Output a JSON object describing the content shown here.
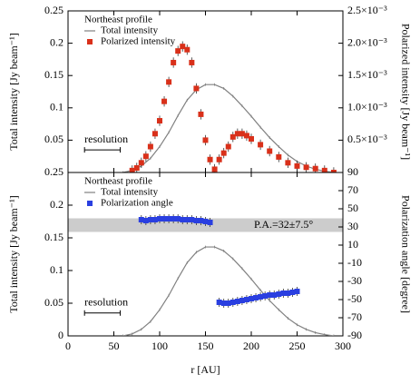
{
  "chart_data": [
    {
      "type": "line",
      "legend_title": "Northeast profile",
      "ylabel": "Total intensity [Jy beam⁻¹]",
      "y2label": "Polarized intensity [Jy beam⁻¹]",
      "xlim": [
        0,
        300
      ],
      "ylim": [
        0,
        0.25
      ],
      "y2lim": [
        0,
        0.0025
      ],
      "yticks": [
        0.05,
        0.1,
        0.15,
        0.2,
        0.25
      ],
      "y2ticks": [
        {
          "value": 0.0005,
          "label": "0.5×10⁻³"
        },
        {
          "value": 0.001,
          "label": "1.0×10⁻³"
        },
        {
          "value": 0.0015,
          "label": "1.5×10⁻³"
        },
        {
          "value": 0.002,
          "label": "2.0×10⁻³"
        },
        {
          "value": 0.0025,
          "label": "2.5×10⁻³"
        }
      ],
      "resolution": {
        "label": "resolution",
        "x": [
          18,
          57
        ],
        "y": 0.035
      },
      "series": [
        {
          "name": "Total intensity",
          "color": "#808080",
          "marker": "none",
          "yerr": 0.002,
          "x": [
            60,
            70,
            80,
            90,
            100,
            110,
            120,
            130,
            140,
            150,
            160,
            170,
            180,
            190,
            200,
            210,
            220,
            230,
            240,
            250,
            260,
            270,
            280,
            290
          ],
          "values": [
            0,
            0.003,
            0.01,
            0.022,
            0.04,
            0.062,
            0.088,
            0.112,
            0.128,
            0.136,
            0.136,
            0.13,
            0.118,
            0.103,
            0.087,
            0.07,
            0.054,
            0.04,
            0.027,
            0.017,
            0.01,
            0.005,
            0.002,
            0
          ]
        },
        {
          "name": "Polarized intensity",
          "color": "#d9301a",
          "marker": "square",
          "axis": "y2",
          "yerr": 8e-05,
          "x": [
            70,
            75,
            80,
            85,
            90,
            95,
            100,
            105,
            110,
            115,
            120,
            125,
            130,
            135,
            140,
            145,
            150,
            155,
            160,
            165,
            170,
            175,
            180,
            185,
            190,
            195,
            200,
            210,
            220,
            230,
            240,
            250,
            260,
            270,
            280,
            290
          ],
          "values": [
            3e-05,
            7e-05,
            0.00015,
            0.00025,
            0.0004,
            0.0006,
            0.0008,
            0.0011,
            0.0014,
            0.0017,
            0.00188,
            0.00195,
            0.0019,
            0.0017,
            0.0013,
            0.0009,
            0.0005,
            0.0002,
            5e-05,
            0.0002,
            0.0003,
            0.0004,
            0.00055,
            0.0006,
            0.0006,
            0.00057,
            0.00052,
            0.00043,
            0.00033,
            0.00024,
            0.00015,
            0.0001,
            8e-05,
            6e-05,
            3e-05,
            0
          ]
        }
      ]
    },
    {
      "type": "line",
      "legend_title": "Northeast profile",
      "xlabel": "r [AU]",
      "ylabel": "Total intensity [Jy beam⁻¹]",
      "y2label": "Polarization angle [degree]",
      "xlim": [
        0,
        300
      ],
      "ylim": [
        0,
        0.25
      ],
      "y2lim": [
        -90,
        90
      ],
      "xticks": [
        0,
        50,
        100,
        150,
        200,
        250,
        300
      ],
      "yticks": [
        0,
        0.05,
        0.1,
        0.15,
        0.2,
        0.25
      ],
      "y2ticks": [
        -90,
        -70,
        -50,
        -30,
        -10,
        10,
        30,
        50,
        70,
        90
      ],
      "band": {
        "center": 32,
        "error": 7.5,
        "label": "P.A.=32±7.5°",
        "color": "#cccccc"
      },
      "resolution": {
        "label": "resolution",
        "x": [
          18,
          57
        ],
        "y": 0.035
      },
      "series": [
        {
          "name": "Total intensity",
          "color": "#808080",
          "marker": "none",
          "yerr": 0.002,
          "x": [
            60,
            70,
            80,
            90,
            100,
            110,
            120,
            130,
            140,
            150,
            160,
            170,
            180,
            190,
            200,
            210,
            220,
            230,
            240,
            250,
            260,
            270,
            280,
            290
          ],
          "values": [
            0,
            0.003,
            0.01,
            0.022,
            0.04,
            0.062,
            0.088,
            0.112,
            0.128,
            0.136,
            0.136,
            0.13,
            0.118,
            0.103,
            0.087,
            0.07,
            0.054,
            0.04,
            0.027,
            0.017,
            0.01,
            0.005,
            0.002,
            0
          ]
        },
        {
          "name": "Polarization angle",
          "color": "#2a3fe0",
          "marker": "square",
          "axis": "y2",
          "yerr": 5,
          "x": [
            80,
            85,
            90,
            95,
            100,
            105,
            110,
            115,
            120,
            125,
            130,
            135,
            140,
            145,
            150,
            155,
            165,
            170,
            175,
            180,
            185,
            190,
            195,
            200,
            205,
            210,
            215,
            220,
            225,
            230,
            235,
            240,
            245,
            250
          ],
          "values": [
            38,
            37,
            38,
            38,
            39,
            39,
            39,
            39,
            39,
            38,
            38,
            38,
            37,
            37,
            36,
            35,
            -53,
            -54,
            -54,
            -53,
            -52,
            -51,
            -50,
            -49,
            -48,
            -47,
            -46,
            -45,
            -45,
            -44,
            -43,
            -43,
            -42,
            -41
          ]
        }
      ]
    }
  ]
}
